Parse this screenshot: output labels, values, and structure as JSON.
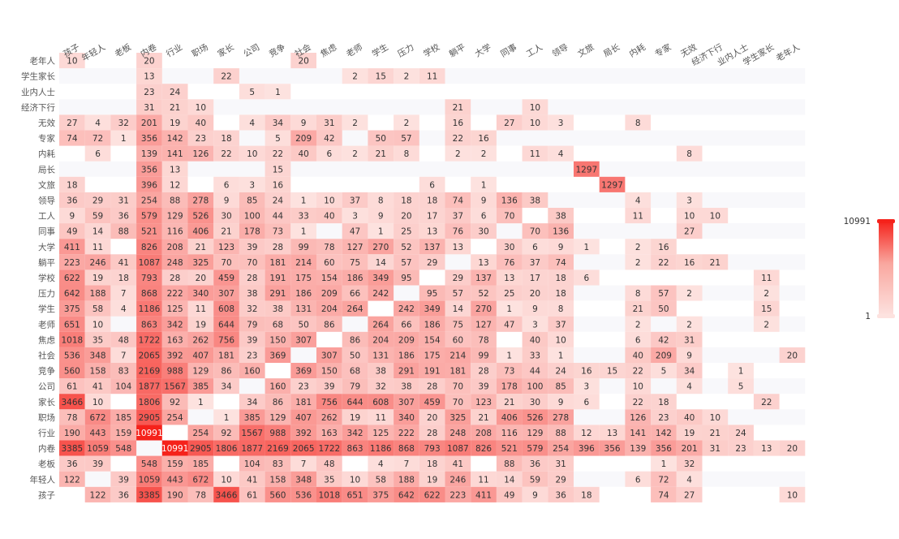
{
  "chart_data": {
    "type": "heatmap",
    "x_labels": [
      "孩子",
      "年轻人",
      "老板",
      "内卷",
      "行业",
      "职场",
      "家长",
      "公司",
      "竞争",
      "社会",
      "焦虑",
      "老师",
      "学生",
      "压力",
      "学校",
      "躺平",
      "大学",
      "同事",
      "工人",
      "领导",
      "文旅",
      "局长",
      "内耗",
      "专家",
      "无效",
      "经济下行",
      "业内人士",
      "学生家长",
      "老年人"
    ],
    "y_labels": [
      "老年人",
      "学生家长",
      "业内人士",
      "经济下行",
      "无效",
      "专家",
      "内耗",
      "局长",
      "文旅",
      "领导",
      "工人",
      "同事",
      "大学",
      "躺平",
      "学校",
      "压力",
      "学生",
      "老师",
      "焦虑",
      "社会",
      "竞争",
      "公司",
      "家长",
      "职场",
      "行业",
      "内卷",
      "老板",
      "年轻人",
      "孩子"
    ],
    "rows": [
      [
        10,
        null,
        null,
        20,
        null,
        null,
        null,
        null,
        null,
        20,
        null,
        null,
        null,
        null,
        null,
        null,
        null,
        null,
        null,
        null,
        null,
        null,
        null,
        null,
        null,
        null,
        null,
        null,
        null
      ],
      [
        null,
        null,
        null,
        13,
        null,
        null,
        22,
        null,
        null,
        null,
        null,
        2,
        15,
        2,
        11,
        null,
        null,
        null,
        null,
        null,
        null,
        null,
        null,
        null,
        null,
        null,
        null,
        null,
        null
      ],
      [
        null,
        null,
        null,
        23,
        24,
        null,
        null,
        5,
        1,
        null,
        null,
        null,
        null,
        null,
        null,
        null,
        null,
        null,
        null,
        null,
        null,
        null,
        null,
        null,
        null,
        null,
        null,
        null,
        null
      ],
      [
        null,
        null,
        null,
        31,
        21,
        10,
        null,
        null,
        null,
        null,
        null,
        null,
        null,
        null,
        null,
        21,
        null,
        null,
        10,
        null,
        null,
        null,
        null,
        null,
        null,
        null,
        null,
        null,
        null
      ],
      [
        27,
        4,
        32,
        201,
        19,
        40,
        null,
        4,
        34,
        9,
        31,
        2,
        null,
        2,
        null,
        16,
        null,
        27,
        10,
        3,
        null,
        null,
        8,
        null,
        null,
        null,
        null,
        null,
        null
      ],
      [
        74,
        72,
        1,
        356,
        142,
        23,
        18,
        null,
        5,
        209,
        42,
        null,
        50,
        57,
        null,
        22,
        16,
        null,
        null,
        null,
        null,
        null,
        null,
        null,
        null,
        null,
        null,
        null,
        null
      ],
      [
        null,
        6,
        null,
        139,
        141,
        126,
        22,
        10,
        22,
        40,
        6,
        2,
        21,
        8,
        null,
        2,
        2,
        null,
        11,
        4,
        null,
        null,
        null,
        null,
        8,
        null,
        null,
        null,
        null
      ],
      [
        null,
        null,
        null,
        356,
        13,
        null,
        null,
        null,
        15,
        null,
        null,
        null,
        null,
        null,
        null,
        null,
        null,
        null,
        null,
        null,
        1297,
        null,
        null,
        null,
        null,
        null,
        null,
        null,
        null
      ],
      [
        18,
        null,
        null,
        396,
        12,
        null,
        6,
        3,
        16,
        null,
        null,
        null,
        null,
        null,
        6,
        null,
        1,
        null,
        null,
        null,
        null,
        1297,
        null,
        null,
        null,
        null,
        null,
        null,
        null
      ],
      [
        36,
        29,
        31,
        254,
        88,
        278,
        9,
        85,
        24,
        1,
        10,
        37,
        8,
        18,
        18,
        74,
        9,
        136,
        38,
        null,
        null,
        null,
        4,
        null,
        3,
        null,
        null,
        null,
        null
      ],
      [
        9,
        59,
        36,
        579,
        129,
        526,
        30,
        100,
        44,
        33,
        40,
        3,
        9,
        20,
        17,
        37,
        6,
        70,
        null,
        38,
        null,
        null,
        11,
        null,
        10,
        10,
        null,
        null,
        null
      ],
      [
        49,
        14,
        88,
        521,
        116,
        406,
        21,
        178,
        73,
        1,
        null,
        47,
        1,
        25,
        13,
        76,
        30,
        null,
        70,
        136,
        null,
        null,
        null,
        null,
        27,
        null,
        null,
        null,
        null
      ],
      [
        411,
        11,
        null,
        826,
        208,
        21,
        123,
        39,
        28,
        99,
        78,
        127,
        270,
        52,
        137,
        13,
        null,
        30,
        6,
        9,
        1,
        null,
        2,
        16,
        null,
        null,
        null,
        null,
        null
      ],
      [
        223,
        246,
        41,
        1087,
        248,
        325,
        70,
        70,
        181,
        214,
        60,
        75,
        14,
        57,
        29,
        null,
        13,
        76,
        37,
        74,
        null,
        null,
        2,
        22,
        16,
        21,
        null,
        null,
        null
      ],
      [
        622,
        19,
        18,
        793,
        28,
        20,
        459,
        28,
        191,
        175,
        154,
        186,
        349,
        95,
        null,
        29,
        137,
        13,
        17,
        18,
        6,
        null,
        null,
        null,
        null,
        null,
        null,
        11,
        null
      ],
      [
        642,
        188,
        7,
        868,
        222,
        340,
        307,
        38,
        291,
        186,
        209,
        66,
        242,
        null,
        95,
        57,
        52,
        25,
        20,
        18,
        null,
        null,
        8,
        57,
        2,
        null,
        null,
        2,
        null
      ],
      [
        375,
        58,
        4,
        1186,
        125,
        11,
        608,
        32,
        38,
        131,
        204,
        264,
        null,
        242,
        349,
        14,
        270,
        1,
        9,
        8,
        null,
        null,
        21,
        50,
        null,
        null,
        null,
        15,
        null
      ],
      [
        651,
        10,
        null,
        863,
        342,
        19,
        644,
        79,
        68,
        50,
        86,
        null,
        264,
        66,
        186,
        75,
        127,
        47,
        3,
        37,
        null,
        null,
        2,
        null,
        2,
        null,
        null,
        2,
        null
      ],
      [
        1018,
        35,
        48,
        1722,
        163,
        262,
        756,
        39,
        150,
        307,
        null,
        86,
        204,
        209,
        154,
        60,
        78,
        null,
        40,
        10,
        null,
        null,
        6,
        42,
        31,
        null,
        null,
        null,
        null
      ],
      [
        536,
        348,
        7,
        2065,
        392,
        407,
        181,
        23,
        369,
        null,
        307,
        50,
        131,
        186,
        175,
        214,
        99,
        1,
        33,
        1,
        null,
        null,
        40,
        209,
        9,
        null,
        null,
        null,
        20
      ],
      [
        560,
        158,
        83,
        2169,
        988,
        129,
        86,
        160,
        null,
        369,
        150,
        68,
        38,
        291,
        191,
        181,
        28,
        73,
        44,
        24,
        16,
        15,
        22,
        5,
        34,
        null,
        1,
        null,
        null
      ],
      [
        61,
        41,
        104,
        1877,
        1567,
        385,
        34,
        null,
        160,
        23,
        39,
        79,
        32,
        38,
        28,
        70,
        39,
        178,
        100,
        85,
        3,
        null,
        10,
        null,
        4,
        null,
        5,
        null,
        null
      ],
      [
        3466,
        10,
        null,
        1806,
        92,
        1,
        null,
        34,
        86,
        181,
        756,
        644,
        608,
        307,
        459,
        70,
        123,
        21,
        30,
        9,
        6,
        null,
        22,
        18,
        null,
        null,
        null,
        22,
        null
      ],
      [
        78,
        672,
        185,
        2905,
        254,
        null,
        1,
        385,
        129,
        407,
        262,
        19,
        11,
        340,
        20,
        325,
        21,
        406,
        526,
        278,
        null,
        null,
        126,
        23,
        40,
        10,
        null,
        null,
        null
      ],
      [
        190,
        443,
        159,
        10991,
        null,
        254,
        92,
        1567,
        988,
        392,
        163,
        342,
        125,
        222,
        28,
        248,
        208,
        116,
        129,
        88,
        12,
        13,
        141,
        142,
        19,
        21,
        24,
        null,
        null
      ],
      [
        3385,
        1059,
        548,
        null,
        10991,
        2905,
        1806,
        1877,
        2169,
        2065,
        1722,
        863,
        1186,
        868,
        793,
        1087,
        826,
        521,
        579,
        254,
        396,
        356,
        139,
        356,
        201,
        31,
        23,
        13,
        20
      ],
      [
        36,
        39,
        null,
        548,
        159,
        185,
        null,
        104,
        83,
        7,
        48,
        null,
        4,
        7,
        18,
        41,
        null,
        88,
        36,
        31,
        null,
        null,
        null,
        1,
        32,
        null,
        null,
        null,
        null
      ],
      [
        122,
        null,
        39,
        1059,
        443,
        672,
        10,
        41,
        158,
        348,
        35,
        10,
        58,
        188,
        19,
        246,
        11,
        14,
        59,
        29,
        null,
        null,
        6,
        72,
        4,
        null,
        null,
        null,
        null
      ],
      [
        null,
        122,
        36,
        3385,
        190,
        78,
        3466,
        61,
        560,
        536,
        1018,
        651,
        375,
        642,
        622,
        223,
        411,
        49,
        9,
        36,
        18,
        null,
        null,
        74,
        27,
        null,
        null,
        null,
        10
      ]
    ],
    "visual_map": {
      "min": 1,
      "max": 10991,
      "max_label": "10991",
      "min_label": "1",
      "color_low": "#fde2df",
      "color_high": "#f5221b",
      "empty_color": "#f8f8fb"
    }
  }
}
